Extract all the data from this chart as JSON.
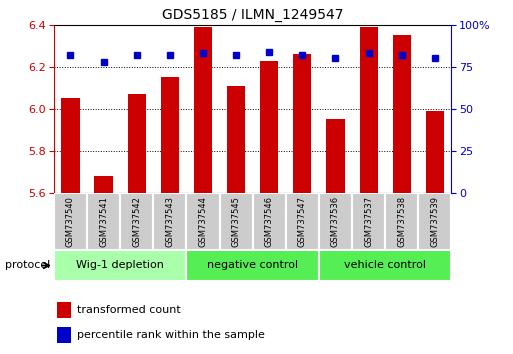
{
  "title": "GDS5185 / ILMN_1249547",
  "samples": [
    "GSM737540",
    "GSM737541",
    "GSM737542",
    "GSM737543",
    "GSM737544",
    "GSM737545",
    "GSM737546",
    "GSM737547",
    "GSM737536",
    "GSM737537",
    "GSM737538",
    "GSM737539"
  ],
  "bar_values": [
    6.05,
    5.68,
    6.07,
    6.15,
    6.39,
    6.11,
    6.23,
    6.26,
    5.95,
    6.39,
    6.35,
    5.99
  ],
  "percentile_values": [
    82,
    78,
    82,
    82,
    83,
    82,
    84,
    82,
    80,
    83,
    82,
    80
  ],
  "bar_color": "#cc0000",
  "dot_color": "#0000cc",
  "ylim_left": [
    5.6,
    6.4
  ],
  "ylim_right": [
    0,
    100
  ],
  "yticks_left": [
    5.6,
    5.8,
    6.0,
    6.2,
    6.4
  ],
  "yticks_right": [
    0,
    25,
    50,
    75,
    100
  ],
  "groups": [
    {
      "label": "Wig-1 depletion",
      "start": 0,
      "end": 4,
      "color": "#aaffaa"
    },
    {
      "label": "negative control",
      "start": 4,
      "end": 8,
      "color": "#55ee55"
    },
    {
      "label": "vehicle control",
      "start": 8,
      "end": 12,
      "color": "#55ee55"
    }
  ],
  "protocol_label": "protocol",
  "legend_bar_label": "transformed count",
  "legend_dot_label": "percentile rank within the sample",
  "tick_color_left": "#cc0000",
  "tick_color_right": "#0000cc",
  "bar_bottom": 5.6,
  "sample_box_color": "#cccccc",
  "sample_box_edge": "#ffffff"
}
